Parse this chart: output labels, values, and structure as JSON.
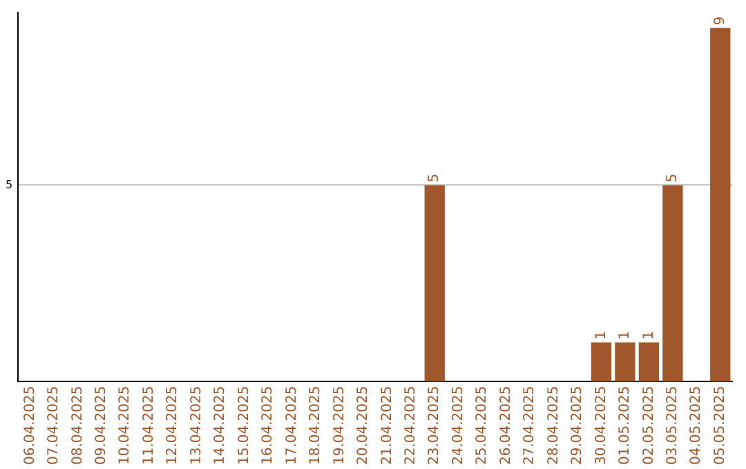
{
  "chart_data": {
    "type": "bar",
    "categories": [
      "06.04.2025",
      "07.04.2025",
      "08.04.2025",
      "09.04.2025",
      "10.04.2025",
      "11.04.2025",
      "12.04.2025",
      "13.04.2025",
      "14.04.2025",
      "15.04.2025",
      "16.04.2025",
      "17.04.2025",
      "18.04.2025",
      "19.04.2025",
      "20.04.2025",
      "21.04.2025",
      "22.04.2025",
      "23.04.2025",
      "24.04.2025",
      "25.04.2025",
      "26.04.2025",
      "27.04.2025",
      "28.04.2025",
      "29.04.2025",
      "30.04.2025",
      "01.05.2025",
      "02.05.2025",
      "03.05.2025",
      "04.05.2025",
      "05.05.2025"
    ],
    "values": [
      null,
      null,
      null,
      null,
      null,
      null,
      null,
      null,
      null,
      null,
      null,
      null,
      null,
      null,
      null,
      null,
      null,
      5,
      null,
      null,
      null,
      null,
      null,
      null,
      1,
      1,
      1,
      5,
      null,
      9
    ],
    "color": "#a0572b",
    "ylim": [
      0,
      9.4
    ],
    "yticks": [
      5
    ],
    "grid": "y",
    "data_labels": true,
    "legend": false
  }
}
